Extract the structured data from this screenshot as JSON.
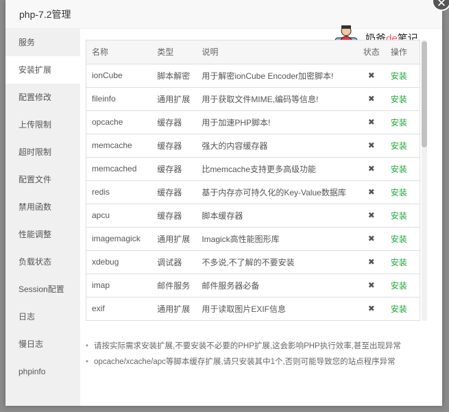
{
  "dialog": {
    "title": "php-7.2管理",
    "close_icon": "close-icon"
  },
  "sidebar": {
    "items": [
      "服务",
      "安装扩展",
      "配置修改",
      "上传限制",
      "超时限制",
      "配置文件",
      "禁用函数",
      "性能调整",
      "负载状态",
      "Session配置",
      "日志",
      "慢日志",
      "phpinfo"
    ],
    "active": "安装扩展"
  },
  "watermark": {
    "pre": "奶爸",
    "mid": "de",
    "post": "笔记"
  },
  "table": {
    "headers": [
      "名称",
      "类型",
      "说明",
      "状态",
      "操作"
    ],
    "rows": [
      [
        "ionCube",
        "脚本解密",
        "用于解密ionCube Encoder加密脚本!",
        "✖",
        "安装"
      ],
      [
        "fileinfo",
        "通用扩展",
        "用于获取文件MIME,编码等信息!",
        "✖",
        "安装"
      ],
      [
        "opcache",
        "缓存器",
        "用于加速PHP脚本!",
        "✖",
        "安装"
      ],
      [
        "memcache",
        "缓存器",
        "强大的内容缓存器",
        "✖",
        "安装"
      ],
      [
        "memcached",
        "缓存器",
        "比memcache支持更多高级功能",
        "✖",
        "安装"
      ],
      [
        "redis",
        "缓存器",
        "基于内存亦可持久化的Key-Value数据库",
        "✖",
        "安装"
      ],
      [
        "apcu",
        "缓存器",
        "脚本缓存器",
        "✖",
        "安装"
      ],
      [
        "imagemagick",
        "通用扩展",
        "Imagick高性能图形库",
        "✖",
        "安装"
      ],
      [
        "xdebug",
        "调试器",
        "不多说,不了解的不要安装",
        "✖",
        "安装"
      ],
      [
        "imap",
        "邮件服务",
        "邮件服务器必备",
        "✖",
        "安装"
      ],
      [
        "exif",
        "通用扩展",
        "用于读取图片EXIF信息",
        "✖",
        "安装"
      ]
    ]
  },
  "notes": [
    "请按实际需求安装扩展,不要安装不必要的PHP扩展,这会影响PHP执行效率,甚至出现异常",
    "opcache/xcache/apc等脚本缓存扩展,请只安装其中1个,否则可能导致您的站点程序异常"
  ],
  "colors": {
    "accent": "#20a53a",
    "watermark_de": "#ff4d6a"
  }
}
